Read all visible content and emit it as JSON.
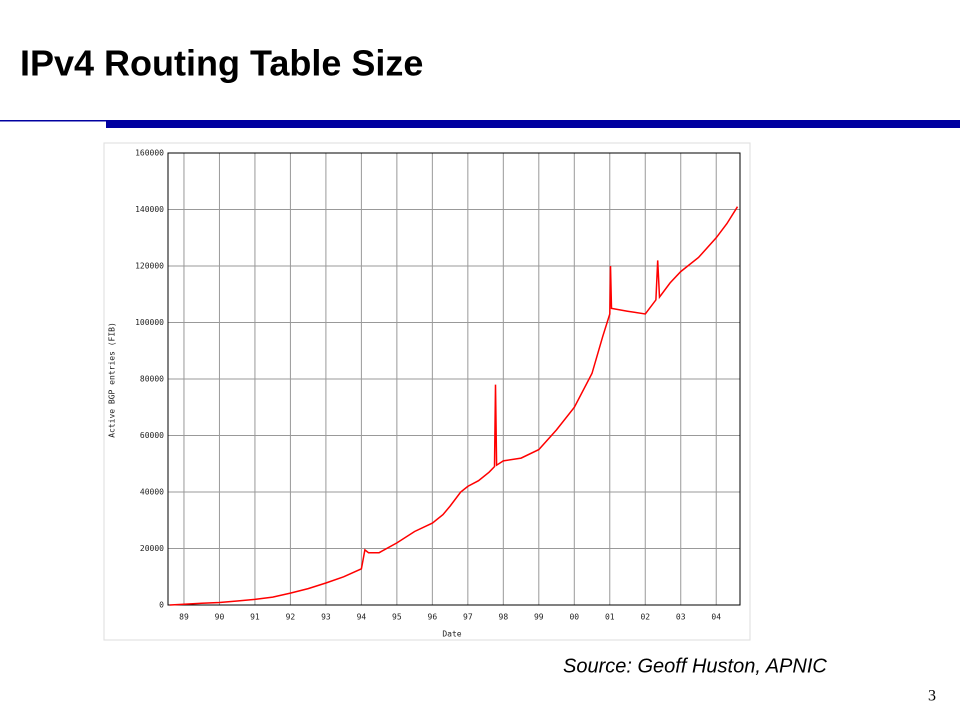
{
  "title": "IPv4 Routing Table Size",
  "source": "Source: Geoff Huston, APNIC",
  "page_number": "3",
  "chart_data": {
    "type": "line",
    "x_label": "Date",
    "y_label": "Active BGP entries (FIB)",
    "x": [
      1988.6,
      1989,
      1989.5,
      1990,
      1990.5,
      1991,
      1991.5,
      1992,
      1992.5,
      1993,
      1993.5,
      1994,
      1994.1,
      1994.2,
      1994.5,
      1995,
      1995.5,
      1996,
      1996.3,
      1996.5,
      1996.8,
      1997,
      1997.3,
      1997.6,
      1997.75,
      1997.78,
      1997.81,
      1998,
      1998.5,
      1999,
      1999.5,
      2000,
      2000.5,
      2000.8,
      2001,
      2001.02,
      2001.05,
      2001.5,
      2002,
      2002.3,
      2002.35,
      2002.4,
      2002.7,
      2003,
      2003.5,
      2004,
      2004.3,
      2004.6
    ],
    "series": [
      {
        "name": "Active BGP entries (FIB)",
        "color": "#ff0000",
        "values": [
          0,
          300,
          600,
          900,
          1400,
          2000,
          2800,
          4200,
          5800,
          7800,
          10000,
          12800,
          19500,
          18500,
          18500,
          22000,
          26000,
          29000,
          32000,
          35000,
          40000,
          42000,
          44000,
          47000,
          49000,
          78000,
          49500,
          51000,
          52000,
          55000,
          62000,
          70000,
          82000,
          95000,
          103000,
          120000,
          105000,
          104000,
          103000,
          108000,
          122000,
          109000,
          114000,
          118000,
          123000,
          130000,
          135000,
          141000
        ]
      }
    ],
    "xlim": [
      1988.55,
      2004.67
    ],
    "xticks": [
      {
        "value": 1989,
        "label": "89"
      },
      {
        "value": 1990,
        "label": "90"
      },
      {
        "value": 1991,
        "label": "91"
      },
      {
        "value": 1992,
        "label": "92"
      },
      {
        "value": 1993,
        "label": "93"
      },
      {
        "value": 1994,
        "label": "94"
      },
      {
        "value": 1995,
        "label": "95"
      },
      {
        "value": 1996,
        "label": "96"
      },
      {
        "value": 1997,
        "label": "97"
      },
      {
        "value": 1998,
        "label": "98"
      },
      {
        "value": 1999,
        "label": "99"
      },
      {
        "value": 2000,
        "label": "00"
      },
      {
        "value": 2001,
        "label": "01"
      },
      {
        "value": 2002,
        "label": "02"
      },
      {
        "value": 2003,
        "label": "03"
      },
      {
        "value": 2004,
        "label": "04"
      }
    ],
    "ylim": [
      0,
      160000
    ],
    "yticks": [
      0,
      20000,
      40000,
      60000,
      80000,
      100000,
      120000,
      140000,
      160000
    ],
    "grid": true
  }
}
